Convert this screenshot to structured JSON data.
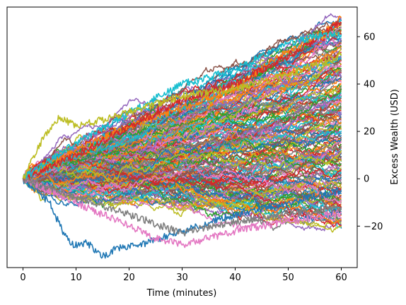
{
  "chart_data": {
    "type": "line",
    "title": "",
    "xlabel": "Time (minutes)",
    "ylabel": "Excess Wealth (USD)",
    "y_axis_side": "right",
    "xlim": [
      -3,
      63
    ],
    "ylim": [
      -37.5,
      72.5
    ],
    "x_ticks": [
      0,
      10,
      20,
      30,
      40,
      50,
      60
    ],
    "y_ticks": [
      -20,
      0,
      20,
      40,
      60
    ],
    "grid": false,
    "legend": "none",
    "x_range": [
      0,
      60
    ],
    "n_series_approx": 200,
    "series_color_cycle": [
      "#1f77b4",
      "#ff7f0e",
      "#2ca02c",
      "#d62728",
      "#9467bd",
      "#8c564b",
      "#e377c2",
      "#7f7f7f",
      "#bcbd22",
      "#17becf"
    ],
    "series_start_value": 0,
    "series_end_range": [
      -21,
      68
    ],
    "highlighted_paths": [
      {
        "color": "#1f77b4",
        "x": [
          0,
          5,
          7,
          9,
          12,
          15,
          18,
          22,
          26,
          30,
          40,
          50,
          60
        ],
        "y": [
          0,
          -10,
          -20,
          -28,
          -27,
          -33,
          -29,
          -28,
          -25,
          -22,
          -15,
          -10,
          -5
        ]
      },
      {
        "color": "#ff7f0e",
        "x": [
          0,
          10,
          20,
          30,
          40,
          47,
          52,
          55,
          58,
          60
        ],
        "y": [
          0,
          12,
          22,
          30,
          38,
          50,
          56,
          60,
          64,
          68
        ]
      },
      {
        "color": "#d62728",
        "x": [
          0,
          10,
          20,
          30,
          40,
          50,
          55,
          58,
          60
        ],
        "y": [
          0,
          10,
          22,
          33,
          40,
          52,
          58,
          64,
          66
        ]
      },
      {
        "color": "#17becf",
        "x": [
          0,
          10,
          20,
          30,
          40,
          45,
          50,
          55,
          60
        ],
        "y": [
          0,
          15,
          28,
          40,
          46,
          52,
          57,
          60,
          61
        ]
      },
      {
        "color": "#e377c2",
        "x": [
          0,
          10,
          20,
          25,
          30,
          40,
          50,
          60
        ],
        "y": [
          0,
          -10,
          -20,
          -25,
          -28,
          -22,
          -18,
          -14
        ]
      },
      {
        "color": "#7f7f7f",
        "x": [
          0,
          10,
          20,
          30,
          36,
          40,
          50,
          60
        ],
        "y": [
          0,
          -8,
          -15,
          -23,
          -20,
          -18,
          -15,
          -12
        ]
      },
      {
        "color": "#bcbd22",
        "x": [
          0,
          4,
          7,
          10,
          20,
          30,
          40,
          50,
          60
        ],
        "y": [
          0,
          18,
          26,
          22,
          28,
          35,
          38,
          44,
          52
        ]
      }
    ]
  }
}
